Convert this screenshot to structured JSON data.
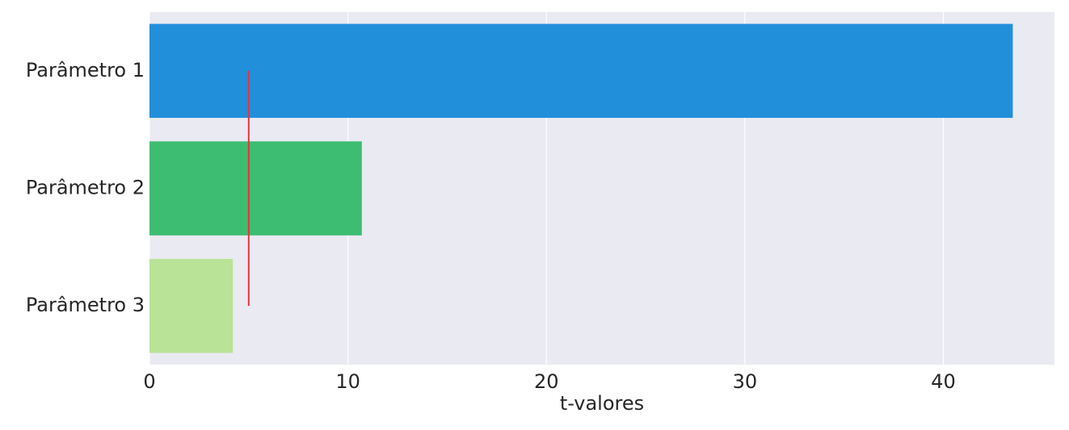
{
  "chart_data": {
    "type": "bar",
    "orientation": "horizontal",
    "categories": [
      "Parâmetro 1",
      "Parâmetro 2",
      "Parâmetro 3"
    ],
    "values": [
      43.5,
      10.7,
      4.2
    ],
    "bar_colors": [
      "#228fdb",
      "#3dbd72",
      "#b9e396"
    ],
    "title": "",
    "xlabel": "t-valores",
    "ylabel": "",
    "xlim": [
      0,
      45.6
    ],
    "xticks": [
      0,
      10,
      20,
      30,
      40
    ],
    "xtick_labels": [
      "0",
      "10",
      "20",
      "30",
      "40"
    ],
    "reference_line": {
      "x": 5,
      "orientation": "vertical",
      "color": "#e8323c"
    },
    "grid": "vertical",
    "legend": "none",
    "background_color": "#eaeaf2"
  }
}
